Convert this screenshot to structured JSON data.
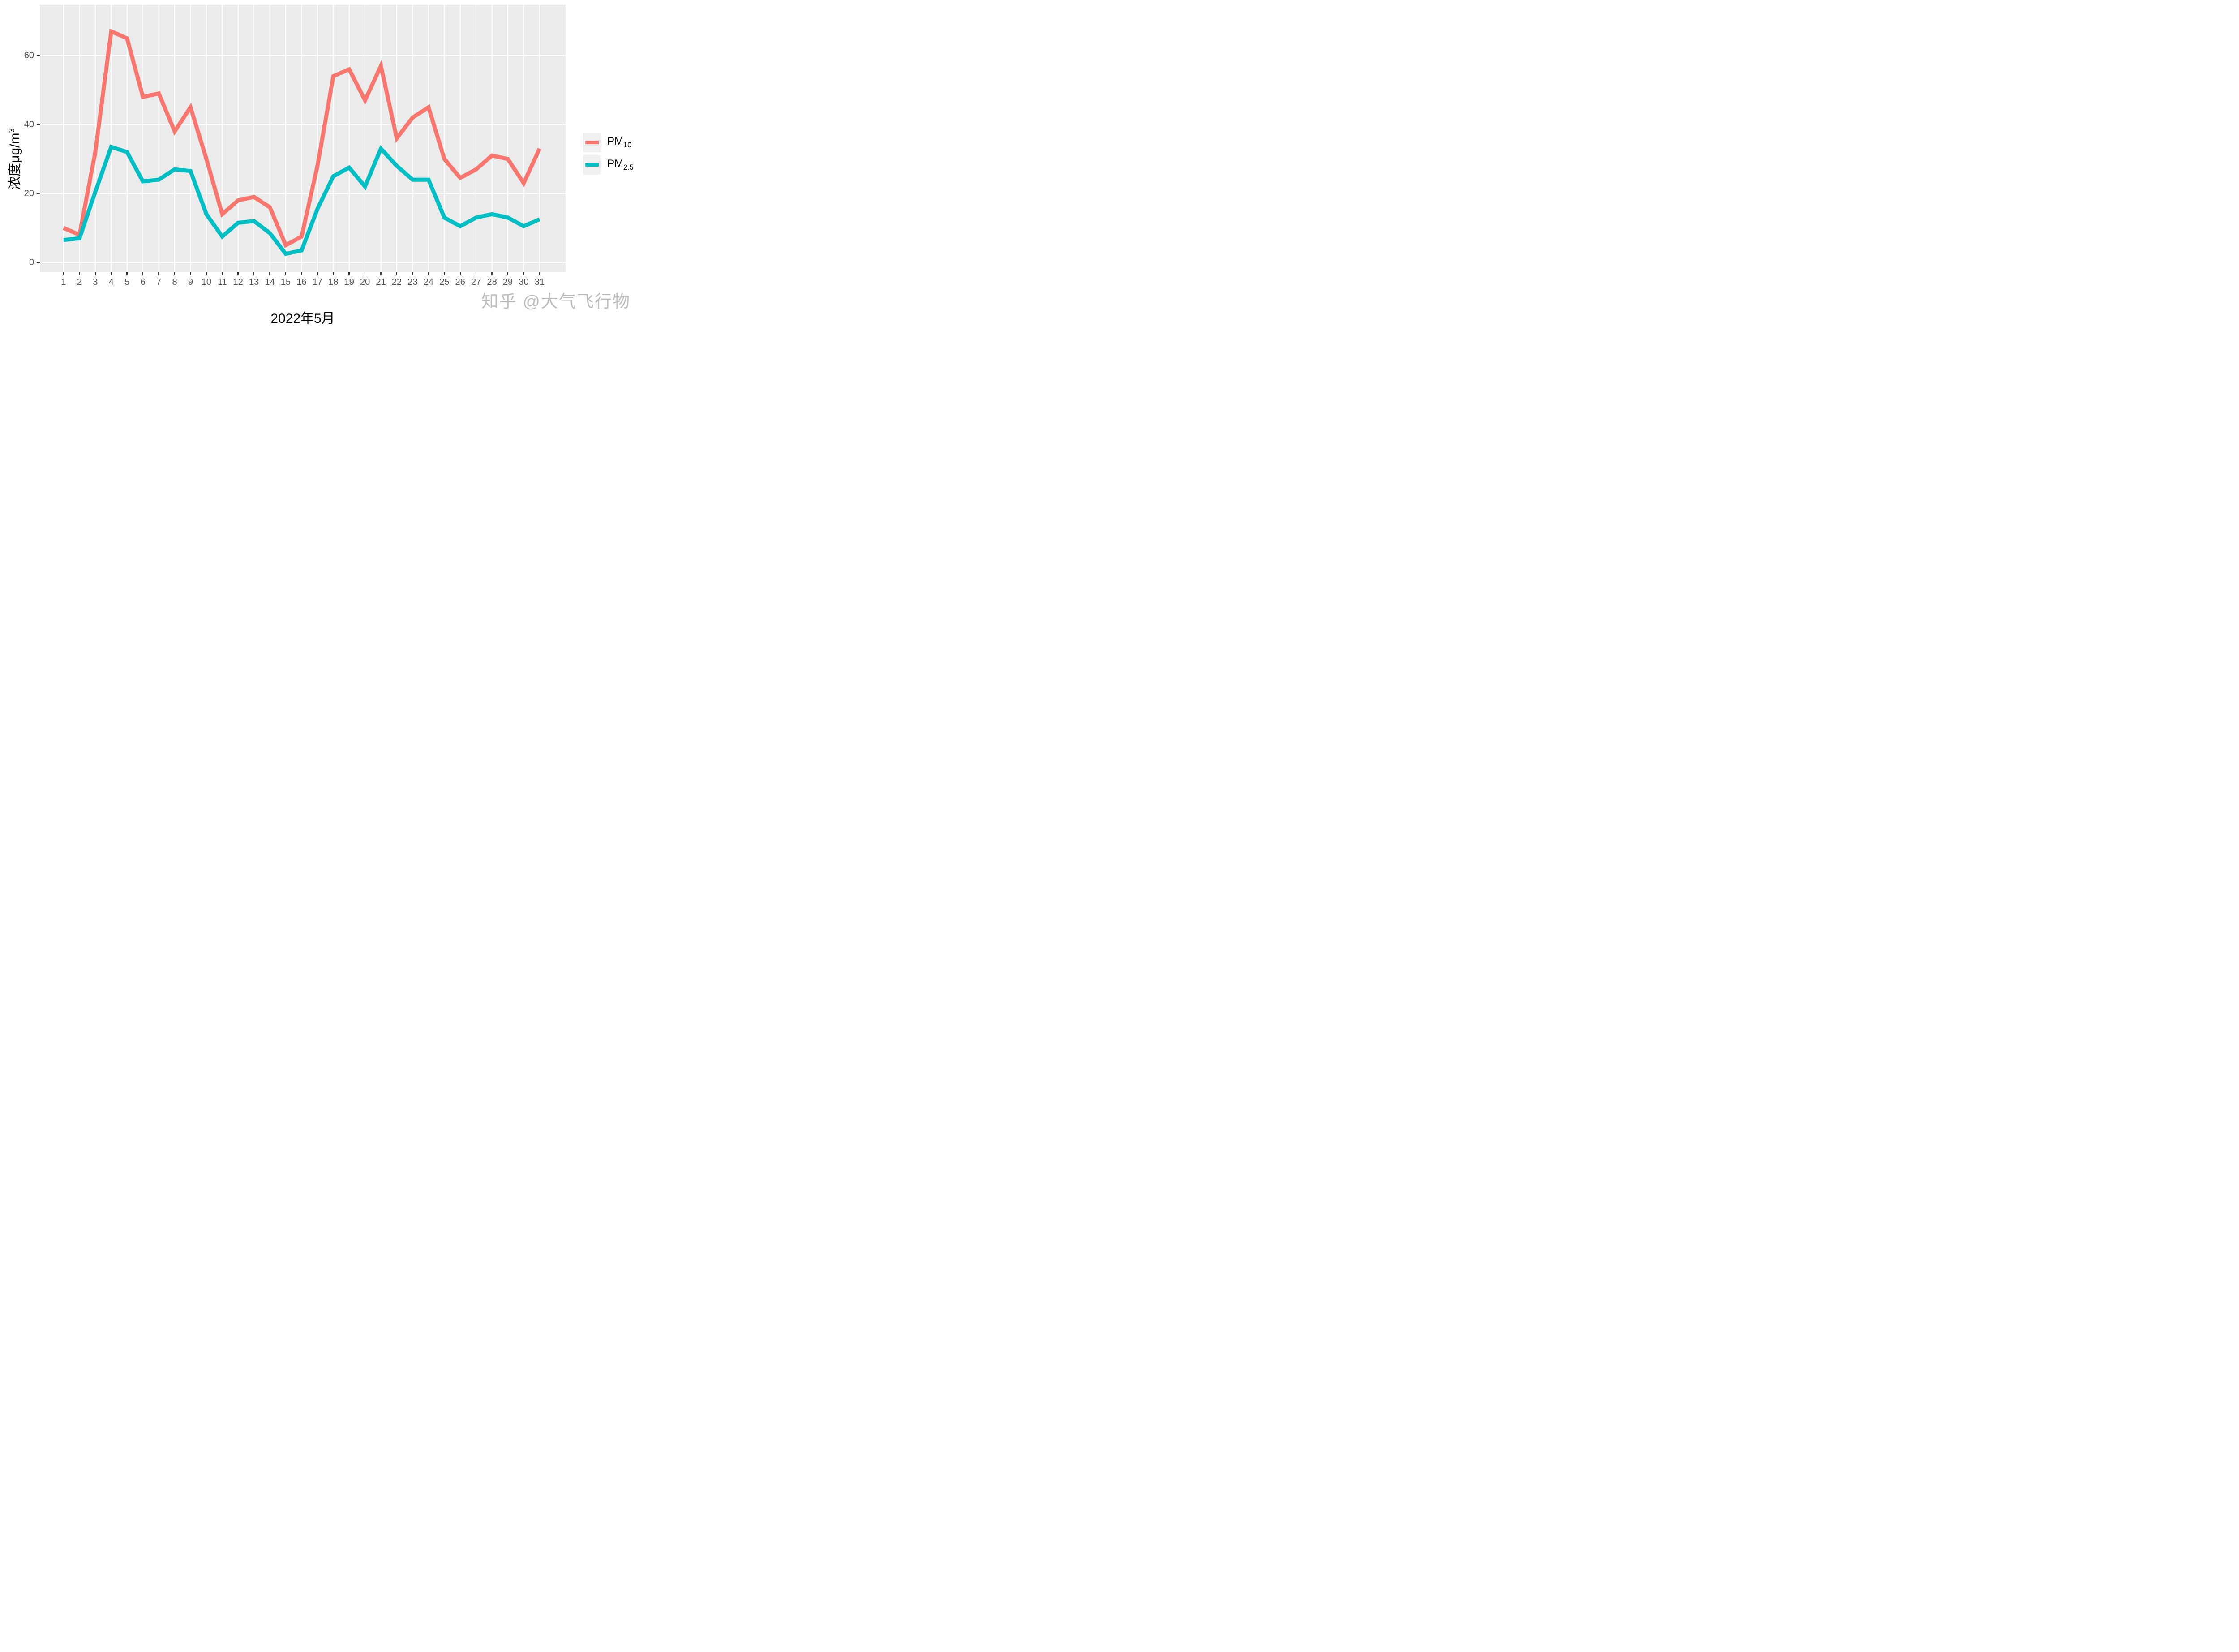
{
  "chart_data": {
    "type": "line",
    "title": "",
    "xlabel": "2022年5月",
    "ylabel_base": "浓度μg/m",
    "ylabel_sup": "3",
    "x": [
      1,
      2,
      3,
      4,
      5,
      6,
      7,
      8,
      9,
      10,
      11,
      12,
      13,
      14,
      15,
      16,
      17,
      18,
      19,
      20,
      21,
      22,
      23,
      24,
      25,
      26,
      27,
      28,
      29,
      30,
      31
    ],
    "series": [
      {
        "name": "PM10",
        "label_base": "PM",
        "label_sub": "10",
        "color": "#F8766D",
        "values": [
          10,
          8,
          32,
          67,
          65,
          48,
          49,
          38,
          45,
          30,
          14,
          18,
          19,
          16,
          5,
          7.5,
          28,
          54,
          56,
          47,
          57,
          36,
          42,
          45,
          30,
          24.5,
          27,
          31,
          30,
          23,
          33
        ]
      },
      {
        "name": "PM2.5",
        "label_base": "PM",
        "label_sub": "2.5",
        "color": "#00BFC4",
        "values": [
          6.5,
          7,
          20.5,
          33.5,
          32,
          23.5,
          24,
          27,
          26.5,
          14,
          7.5,
          11.5,
          12,
          8.5,
          2.5,
          3.5,
          15.5,
          25,
          27.5,
          22,
          33,
          28,
          24,
          24,
          13,
          10.5,
          13,
          14,
          13,
          10.5,
          12.5
        ]
      }
    ],
    "yticks": [
      0,
      20,
      40,
      60
    ],
    "ylim": [
      -3,
      75
    ],
    "grid": {
      "horizontal": "major-only",
      "vertical": "every-day",
      "color": "#FFFFFF",
      "panel_background": "#EBEBEB"
    },
    "legend_position": "right"
  },
  "watermark": "知乎 @大气飞行物",
  "colors": {
    "panel_background": "#EBEBEB",
    "gridline": "#FFFFFF",
    "axis_text": "#4D4D4D",
    "tick_mark": "#333333",
    "legend_key_background": "#F0F0F0",
    "watermark": "#BCBCBC"
  }
}
